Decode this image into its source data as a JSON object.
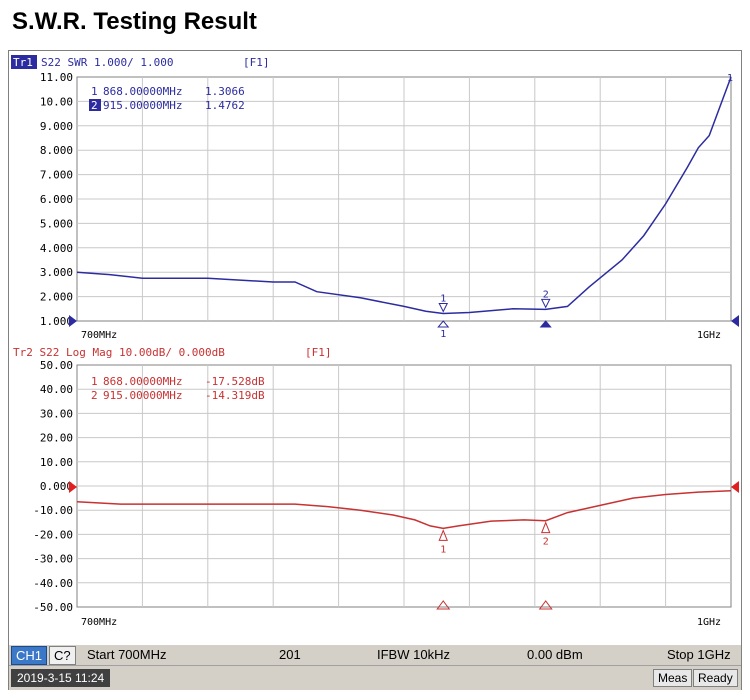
{
  "title": "S.W.R. Testing Result",
  "trace1": {
    "tag": "Tr1",
    "header": "S22 SWR 1.000/ 1.000",
    "format": "[F1]",
    "color": "#2c2ca0",
    "markers": [
      {
        "id": "1",
        "freq": "868.00000MHz",
        "value": "1.3066"
      },
      {
        "id": "2",
        "freq": "915.00000MHz",
        "value": "1.4762"
      }
    ],
    "y_ticks": [
      "11.00",
      "10.00",
      "9.000",
      "8.000",
      "7.000",
      "6.000",
      "5.000",
      "4.000",
      "3.000",
      "2.000",
      "1.000"
    ],
    "x_start": "700MHz",
    "x_stop": "1GHz",
    "end_marker": "1"
  },
  "trace2": {
    "header": "Tr2 S22 Log Mag 10.00dB/ 0.000dB",
    "format": "[F1]",
    "color": "#c83232",
    "markers": [
      {
        "id": "1",
        "freq": "868.00000MHz",
        "value": "-17.528dB"
      },
      {
        "id": "2",
        "freq": "915.00000MHz",
        "value": "-14.319dB"
      }
    ],
    "y_ticks": [
      "50.00",
      "40.00",
      "30.00",
      "20.00",
      "10.00",
      "0.000",
      "-10.00",
      "-20.00",
      "-30.00",
      "-40.00",
      "-50.00"
    ],
    "x_start": "700MHz",
    "x_stop": "1GHz"
  },
  "status": {
    "channel": "CH1",
    "cal": "C?",
    "start": "Start 700MHz",
    "points": "201",
    "ifbw": "IFBW 10kHz",
    "power": "0.00 dBm",
    "stop": "Stop 1GHz",
    "datetime": "2019-3-15 11:24",
    "meas": "Meas",
    "ready": "Ready"
  },
  "chart_data": [
    {
      "type": "line",
      "x_unit": "MHz",
      "xlim": [
        700,
        1000
      ],
      "ylim": [
        1,
        11
      ],
      "series": [
        {
          "x": [
            700,
            715,
            730,
            760,
            790,
            800,
            810,
            830,
            850,
            860,
            868,
            880,
            900,
            915,
            925,
            935,
            950,
            960,
            970,
            980,
            985,
            990,
            995,
            1000
          ],
          "values": [
            3.0,
            2.9,
            2.75,
            2.75,
            2.6,
            2.6,
            2.2,
            1.95,
            1.6,
            1.4,
            1.3066,
            1.35,
            1.5,
            1.4762,
            1.6,
            2.4,
            3.5,
            4.5,
            5.8,
            7.3,
            8.1,
            8.6,
            9.8,
            11.0
          ]
        }
      ]
    },
    {
      "type": "line",
      "x_unit": "MHz",
      "xlim": [
        700,
        1000
      ],
      "ylim": [
        -50,
        50
      ],
      "series": [
        {
          "x": [
            700,
            720,
            750,
            780,
            800,
            815,
            830,
            845,
            855,
            862,
            868,
            875,
            890,
            905,
            915,
            925,
            940,
            955,
            970,
            985,
            1000
          ],
          "values": [
            -6.5,
            -7.5,
            -7.5,
            -7.5,
            -7.5,
            -8.5,
            -10,
            -12,
            -14,
            -16.5,
            -17.528,
            -16.5,
            -14.5,
            -14,
            -14.319,
            -11,
            -8,
            -5,
            -3.5,
            -2.5,
            -2
          ]
        }
      ]
    }
  ]
}
